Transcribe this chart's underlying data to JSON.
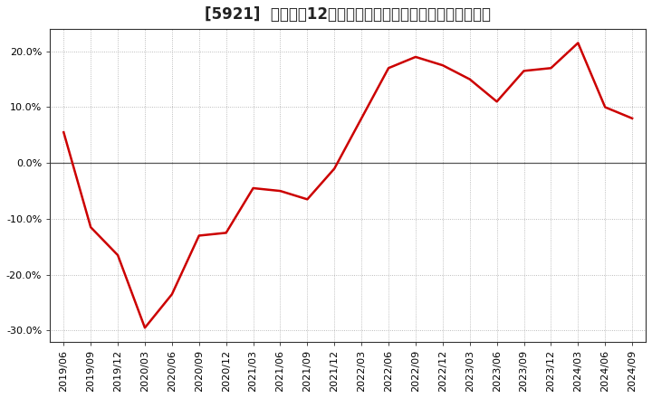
{
  "title": "[5921]  売上高の12か月移動合計の対前年同期増減率の推移",
  "line_color": "#cc0000",
  "background_color": "#ffffff",
  "plot_bg_color": "#ffffff",
  "grid_color": "#aaaaaa",
  "zero_line_color": "#555555",
  "dates": [
    "2019/06",
    "2019/09",
    "2019/12",
    "2020/03",
    "2020/06",
    "2020/09",
    "2020/12",
    "2021/03",
    "2021/06",
    "2021/09",
    "2021/12",
    "2022/03",
    "2022/06",
    "2022/09",
    "2022/12",
    "2023/03",
    "2023/06",
    "2023/09",
    "2023/12",
    "2024/03",
    "2024/06",
    "2024/09"
  ],
  "values": [
    5.5,
    -11.5,
    -16.5,
    -29.5,
    -23.5,
    -13.0,
    -12.5,
    -4.5,
    -5.0,
    -6.5,
    -1.0,
    8.0,
    17.0,
    19.0,
    17.5,
    15.0,
    11.0,
    16.5,
    17.0,
    21.5,
    10.0,
    8.0
  ],
  "ylim": [
    -32,
    24
  ],
  "yticks": [
    -30.0,
    -20.0,
    -10.0,
    0.0,
    10.0,
    20.0
  ],
  "title_fontsize": 12,
  "tick_fontsize": 8,
  "line_width": 1.8
}
